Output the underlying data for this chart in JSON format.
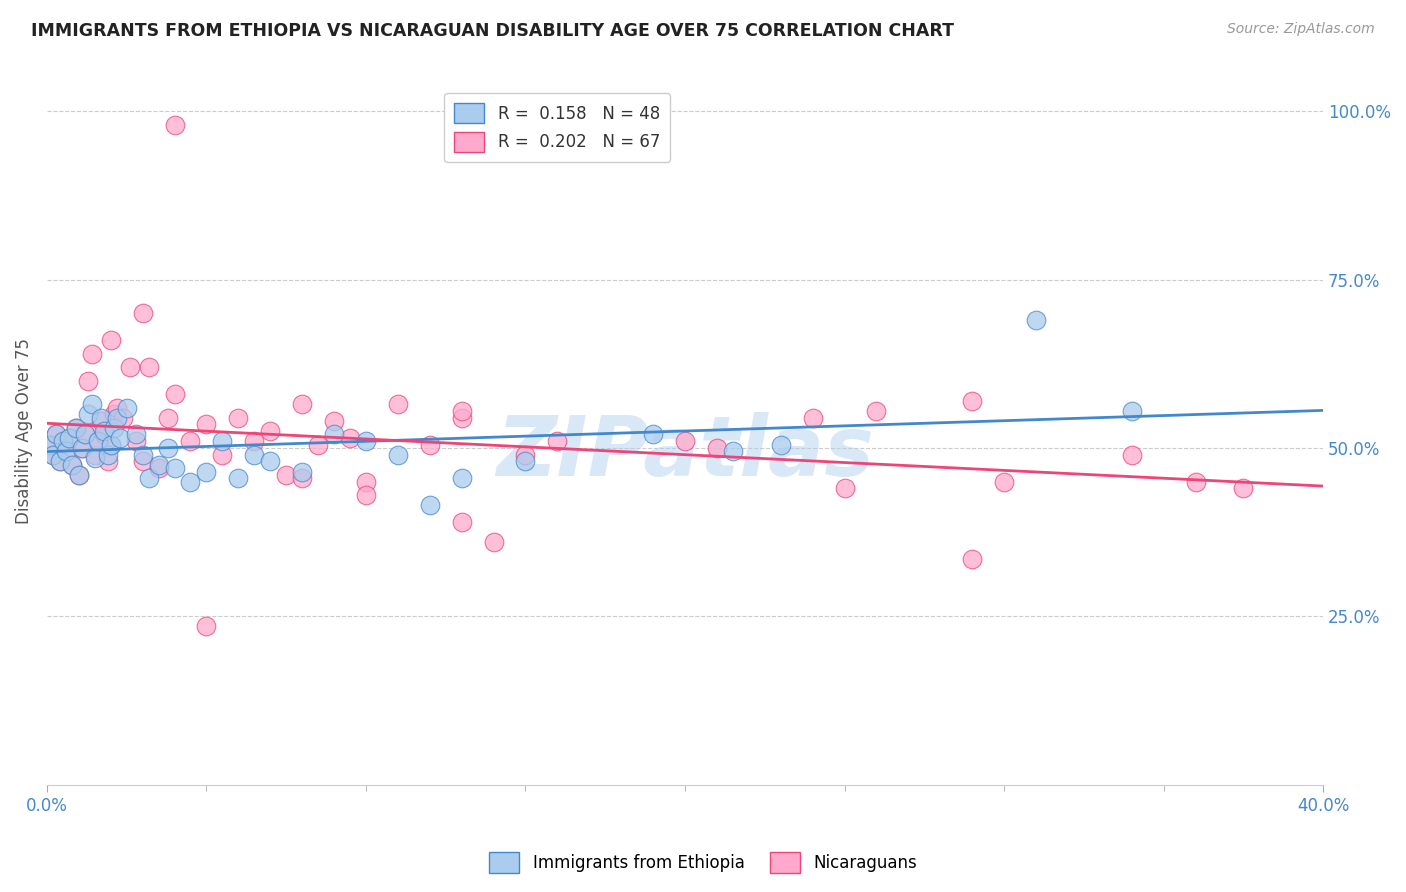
{
  "title": "IMMIGRANTS FROM ETHIOPIA VS NICARAGUAN DISABILITY AGE OVER 75 CORRELATION CHART",
  "source": "Source: ZipAtlas.com",
  "ylabel": "Disability Age Over 75",
  "right_ytick_vals": [
    1.0,
    0.75,
    0.5,
    0.25
  ],
  "right_ytick_labels": [
    "100.0%",
    "75.0%",
    "50.0%",
    "25.0%"
  ],
  "legend1_color": "#aaccee",
  "legend2_color": "#ffaacc",
  "line1_color": "#4488cc",
  "line2_color": "#ee4477",
  "background_color": "#ffffff",
  "watermark": "ZIPatlas",
  "ethiopia_x": [
    0.001,
    0.002,
    0.003,
    0.004,
    0.005,
    0.006,
    0.007,
    0.008,
    0.009,
    0.01,
    0.011,
    0.012,
    0.013,
    0.014,
    0.015,
    0.016,
    0.017,
    0.018,
    0.019,
    0.02,
    0.021,
    0.022,
    0.023,
    0.025,
    0.028,
    0.03,
    0.032,
    0.035,
    0.038,
    0.04,
    0.045,
    0.05,
    0.055,
    0.06,
    0.065,
    0.07,
    0.08,
    0.09,
    0.1,
    0.11,
    0.12,
    0.13,
    0.15,
    0.19,
    0.215,
    0.23,
    0.31,
    0.34
  ],
  "ethiopia_y": [
    0.505,
    0.49,
    0.52,
    0.48,
    0.51,
    0.495,
    0.515,
    0.475,
    0.53,
    0.46,
    0.5,
    0.52,
    0.55,
    0.565,
    0.485,
    0.51,
    0.545,
    0.525,
    0.49,
    0.505,
    0.53,
    0.545,
    0.515,
    0.56,
    0.52,
    0.49,
    0.455,
    0.475,
    0.5,
    0.47,
    0.45,
    0.465,
    0.51,
    0.455,
    0.49,
    0.48,
    0.465,
    0.52,
    0.51,
    0.49,
    0.415,
    0.455,
    0.48,
    0.52,
    0.495,
    0.505,
    0.69,
    0.555
  ],
  "nicaragua_x": [
    0.001,
    0.002,
    0.003,
    0.004,
    0.005,
    0.006,
    0.007,
    0.008,
    0.009,
    0.01,
    0.011,
    0.012,
    0.013,
    0.014,
    0.015,
    0.016,
    0.017,
    0.018,
    0.019,
    0.02,
    0.021,
    0.022,
    0.024,
    0.026,
    0.028,
    0.03,
    0.032,
    0.035,
    0.038,
    0.04,
    0.045,
    0.05,
    0.055,
    0.06,
    0.065,
    0.07,
    0.075,
    0.08,
    0.085,
    0.09,
    0.1,
    0.11,
    0.12,
    0.13,
    0.15,
    0.16,
    0.2,
    0.21,
    0.24,
    0.26,
    0.29,
    0.3,
    0.13,
    0.05,
    0.08,
    0.1,
    0.14,
    0.25,
    0.29,
    0.34,
    0.36,
    0.375,
    0.095,
    0.13,
    0.02,
    0.03,
    0.04
  ],
  "nicaragua_y": [
    0.505,
    0.49,
    0.52,
    0.48,
    0.51,
    0.495,
    0.515,
    0.475,
    0.53,
    0.46,
    0.5,
    0.52,
    0.6,
    0.64,
    0.49,
    0.51,
    0.54,
    0.52,
    0.48,
    0.505,
    0.55,
    0.56,
    0.545,
    0.62,
    0.51,
    0.48,
    0.62,
    0.47,
    0.545,
    0.58,
    0.51,
    0.535,
    0.49,
    0.545,
    0.51,
    0.525,
    0.46,
    0.565,
    0.505,
    0.54,
    0.45,
    0.565,
    0.505,
    0.545,
    0.49,
    0.51,
    0.51,
    0.5,
    0.545,
    0.555,
    0.57,
    0.45,
    0.39,
    0.235,
    0.455,
    0.43,
    0.36,
    0.44,
    0.335,
    0.49,
    0.45,
    0.44,
    0.515,
    0.555,
    0.66,
    0.7,
    0.98
  ],
  "xmin": 0.0,
  "xmax": 0.4,
  "ymin": 0.0,
  "ymax": 1.05,
  "xtick_minor_vals": [
    0.05,
    0.1,
    0.15,
    0.2,
    0.25,
    0.3,
    0.35
  ],
  "tick_color": "#4488cc",
  "label_color": "#4488cc",
  "title_color": "#222222",
  "source_color": "#999999",
  "grid_color": "#cccccc"
}
